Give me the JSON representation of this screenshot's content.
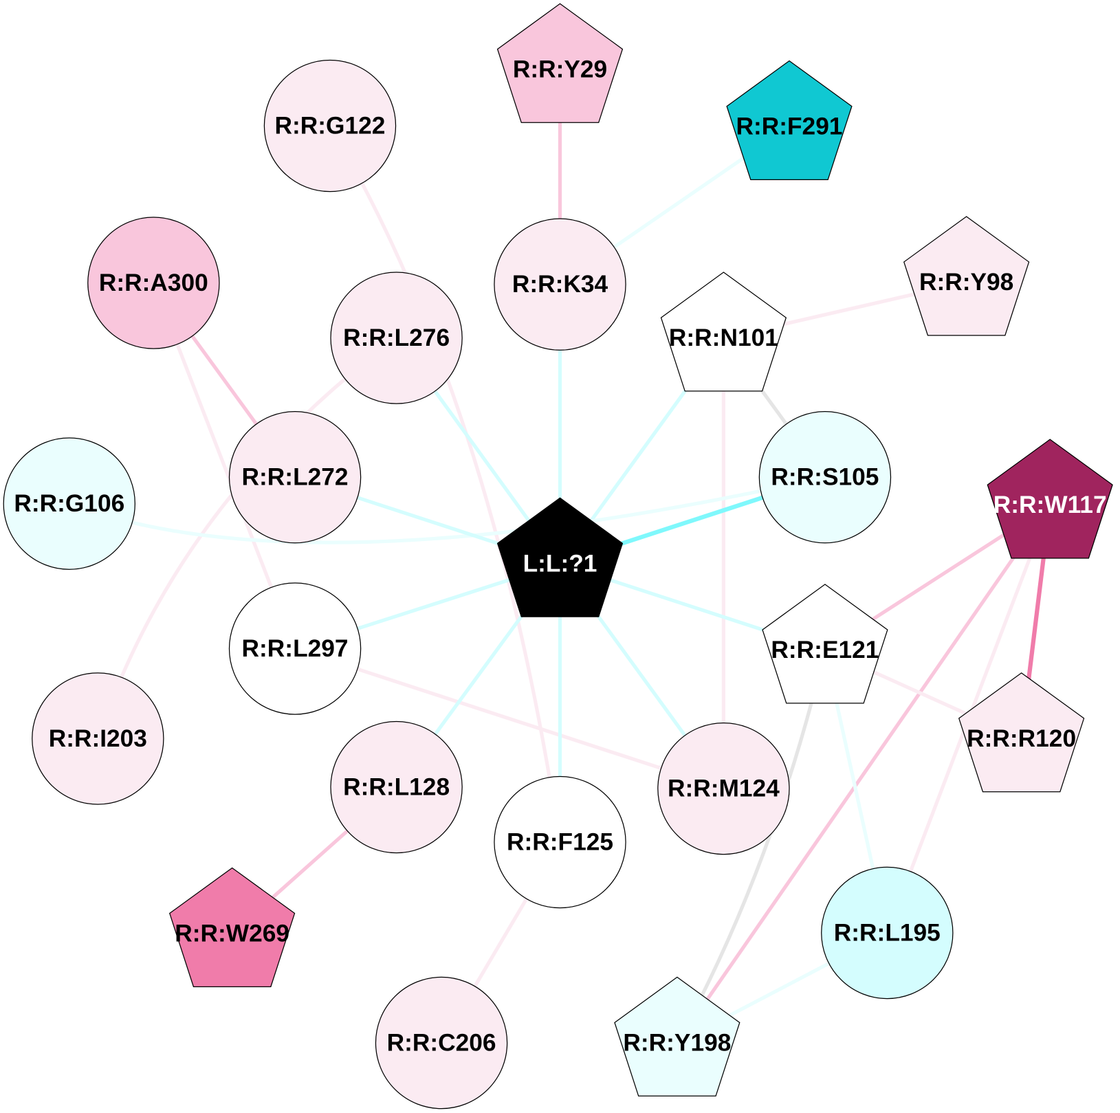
{
  "nodes": [
    {
      "id": "Y29",
      "label": "R:R:Y29",
      "shape": "pentagon",
      "fill": "#f9c6dc",
      "text": "#000000"
    },
    {
      "id": "G122",
      "label": "R:R:G122",
      "shape": "circle",
      "fill": "#fbebf2",
      "text": "#000000"
    },
    {
      "id": "F291",
      "label": "R:R:F291",
      "shape": "pentagon",
      "fill": "#10c8d2",
      "text": "#000000"
    },
    {
      "id": "A300",
      "label": "R:R:A300",
      "shape": "circle",
      "fill": "#f9c6dc",
      "text": "#000000"
    },
    {
      "id": "K34",
      "label": "R:R:K34",
      "shape": "circle",
      "fill": "#fbebf2",
      "text": "#000000"
    },
    {
      "id": "Y98",
      "label": "R:R:Y98",
      "shape": "pentagon",
      "fill": "#fbebf2",
      "text": "#000000"
    },
    {
      "id": "N101",
      "label": "R:R:N101",
      "shape": "pentagon",
      "fill": "#ffffff",
      "text": "#000000"
    },
    {
      "id": "L276",
      "label": "R:R:L276",
      "shape": "circle",
      "fill": "#fbebf2",
      "text": "#000000"
    },
    {
      "id": "L272",
      "label": "R:R:L272",
      "shape": "circle",
      "fill": "#fbebf2",
      "text": "#000000"
    },
    {
      "id": "S105",
      "label": "R:R:S105",
      "shape": "circle",
      "fill": "#eafefe",
      "text": "#000000"
    },
    {
      "id": "G106",
      "label": "R:R:G106",
      "shape": "circle",
      "fill": "#eafefe",
      "text": "#000000"
    },
    {
      "id": "W117",
      "label": "R:R:W117",
      "shape": "pentagon",
      "fill": "#a0245e",
      "text": "#ffffff"
    },
    {
      "id": "LIG",
      "label": "L:L:?1",
      "shape": "pentagon",
      "fill": "#000000",
      "text": "#ffffff"
    },
    {
      "id": "L297",
      "label": "R:R:L297",
      "shape": "circle",
      "fill": "#ffffff",
      "text": "#000000"
    },
    {
      "id": "E121",
      "label": "R:R:E121",
      "shape": "pentagon",
      "fill": "#ffffff",
      "text": "#000000"
    },
    {
      "id": "I203",
      "label": "R:R:I203",
      "shape": "circle",
      "fill": "#fbebf2",
      "text": "#000000"
    },
    {
      "id": "R120",
      "label": "R:R:R120",
      "shape": "pentagon",
      "fill": "#fbebf2",
      "text": "#000000"
    },
    {
      "id": "L128",
      "label": "R:R:L128",
      "shape": "circle",
      "fill": "#fbebf2",
      "text": "#000000"
    },
    {
      "id": "M124",
      "label": "R:R:M124",
      "shape": "circle",
      "fill": "#fbebf2",
      "text": "#000000"
    },
    {
      "id": "F125",
      "label": "R:R:F125",
      "shape": "circle",
      "fill": "#ffffff",
      "text": "#000000"
    },
    {
      "id": "W269",
      "label": "R:R:W269",
      "shape": "pentagon",
      "fill": "#f07caa",
      "text": "#000000"
    },
    {
      "id": "L195",
      "label": "R:R:L195",
      "shape": "circle",
      "fill": "#d4fdfe",
      "text": "#000000"
    },
    {
      "id": "C206",
      "label": "R:R:C206",
      "shape": "circle",
      "fill": "#fbebf2",
      "text": "#000000"
    },
    {
      "id": "Y198",
      "label": "R:R:Y198",
      "shape": "pentagon",
      "fill": "#eafefe",
      "text": "#000000"
    }
  ],
  "edges": [
    {
      "source": "Y29",
      "target": "K34",
      "color": "#f9c6dc"
    },
    {
      "source": "F291",
      "target": "K34",
      "color": "#eafefe"
    },
    {
      "source": "G122",
      "target": "F125",
      "color": "#fbebf2"
    },
    {
      "source": "A300",
      "target": "L272",
      "color": "#f9c6dc"
    },
    {
      "source": "A300",
      "target": "L297",
      "color": "#fbebf2"
    },
    {
      "source": "L276",
      "target": "I203",
      "color": "#fbebf2"
    },
    {
      "source": "L276",
      "target": "LIG",
      "color": "#d4fdfe"
    },
    {
      "source": "K34",
      "target": "LIG",
      "color": "#d4fdfe"
    },
    {
      "source": "N101",
      "target": "LIG",
      "color": "#d4fdfe"
    },
    {
      "source": "N101",
      "target": "Y98",
      "color": "#fbebf2"
    },
    {
      "source": "N101",
      "target": "S105",
      "color": "#e5e5e5"
    },
    {
      "source": "N101",
      "target": "M124",
      "color": "#fbebf2"
    },
    {
      "source": "S105",
      "target": "LIG",
      "color": "#7ff8fc"
    },
    {
      "source": "G106",
      "target": "S105",
      "color": "#eafefe"
    },
    {
      "source": "L272",
      "target": "LIG",
      "color": "#d4fdfe"
    },
    {
      "source": "L297",
      "target": "LIG",
      "color": "#d4fdfe"
    },
    {
      "source": "L297",
      "target": "M124",
      "color": "#fbebf2"
    },
    {
      "source": "E121",
      "target": "LIG",
      "color": "#d4fdfe"
    },
    {
      "source": "W117",
      "target": "E121",
      "color": "#f9c6dc"
    },
    {
      "source": "W117",
      "target": "Y198",
      "color": "#f9c6dc"
    },
    {
      "source": "W117",
      "target": "R120",
      "color": "#f07caa"
    },
    {
      "source": "W117",
      "target": "L195",
      "color": "#fbebf2"
    },
    {
      "source": "E121",
      "target": "R120",
      "color": "#fbebf2"
    },
    {
      "source": "E121",
      "target": "Y198",
      "color": "#e5e5e5"
    },
    {
      "source": "E121",
      "target": "L195",
      "color": "#eafefe"
    },
    {
      "source": "L128",
      "target": "LIG",
      "color": "#d4fdfe"
    },
    {
      "source": "L128",
      "target": "W269",
      "color": "#f9c6dc"
    },
    {
      "source": "F125",
      "target": "LIG",
      "color": "#d4fdfe"
    },
    {
      "source": "M124",
      "target": "LIG",
      "color": "#d4fdfe"
    },
    {
      "source": "F125",
      "target": "C206",
      "color": "#fbebf2"
    },
    {
      "source": "L195",
      "target": "Y198",
      "color": "#eafefe"
    }
  ]
}
